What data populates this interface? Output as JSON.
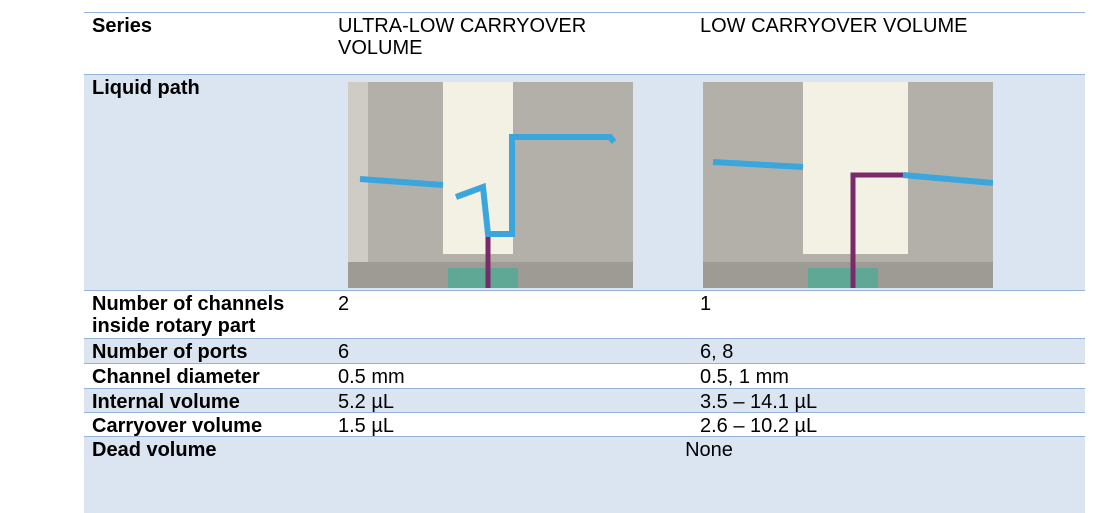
{
  "table": {
    "header": [
      "Series",
      "ULTRA-LOW CARRYOVER VOLUME",
      "LOW CARRYOVER VOLUME"
    ],
    "rows": [
      [
        "Liquid path"
      ],
      [
        "Number of channels inside rotary part",
        "2",
        "1"
      ],
      [
        "Number of ports",
        "6",
        "6, 8"
      ],
      [
        "Channel diameter",
        "0.5 mm",
        "0.5, 1 mm"
      ],
      [
        "Internal volume",
        "5.2 µL",
        "3.5 – 14.1 µL"
      ],
      [
        "Carryover volume",
        "1.5 µL",
        "2.6 – 10.2 µL"
      ],
      [
        "Dead volume",
        "None"
      ]
    ]
  }
}
